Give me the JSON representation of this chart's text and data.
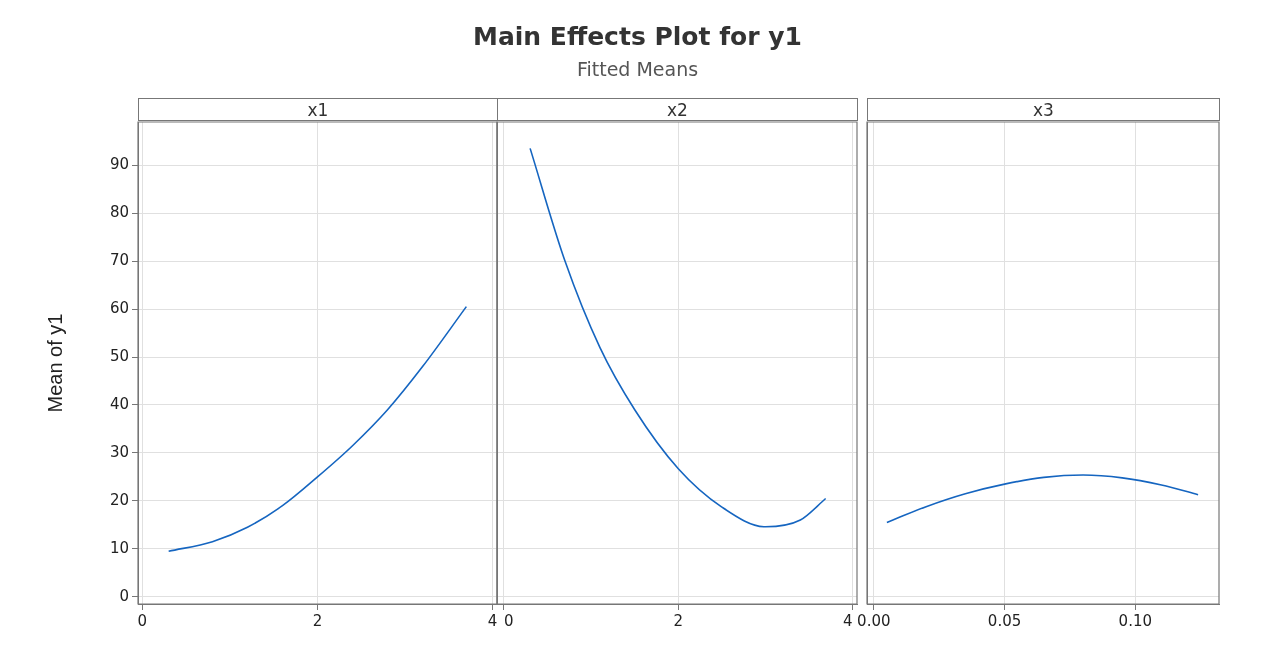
{
  "chart_data": [
    {
      "type": "line",
      "xlabel": "x1",
      "ylabel": "Mean of y1",
      "x": [
        0.3,
        0.8,
        1.2,
        1.6,
        2.0,
        2.4,
        2.8,
        3.2,
        3.7
      ],
      "series": [
        {
          "color": "#1565c0",
          "values": [
            9.5,
            11.5,
            14.5,
            19,
            25,
            31.5,
            39,
            48,
            60.5
          ]
        }
      ],
      "xlim": [
        -0.05,
        4.05
      ],
      "xticks": [
        0,
        2,
        4
      ],
      "ylim": [
        -1.5,
        99
      ],
      "yticks": [
        0,
        10,
        20,
        30,
        40,
        50,
        60,
        70,
        80,
        90
      ],
      "grid": true,
      "marker": "none",
      "line_style": "solid"
    },
    {
      "type": "line",
      "title": "Main Effects Plot for y1",
      "subtitle": "Fitted Means",
      "xlabel": "x2",
      "x": [
        0.3,
        0.7,
        1.1,
        1.5,
        2.0,
        2.5,
        3.0,
        3.4,
        3.69
      ],
      "series": [
        {
          "color": "#1565c0",
          "values": [
            93.5,
            70,
            52,
            39,
            26.7,
            18.7,
            14.6,
            16,
            20.5
          ]
        }
      ],
      "xlim": [
        -0.08,
        4.05
      ],
      "xticks": [
        0,
        2,
        4
      ],
      "ylim": [
        -1.5,
        99
      ],
      "yticks": [
        0,
        10,
        20,
        30,
        40,
        50,
        60,
        70,
        80,
        90
      ],
      "grid": true,
      "tick_labels": "x",
      "marker": "none",
      "line_style": "solid"
    },
    {
      "type": "line",
      "xlabel": "x3",
      "x": [
        0.005,
        0.02,
        0.035,
        0.05,
        0.065,
        0.08,
        0.095,
        0.11,
        0.124
      ],
      "series": [
        {
          "color": "#1565c0",
          "values": [
            15.5,
            18.8,
            21.5,
            23.5,
            24.9,
            25.4,
            24.8,
            23.3,
            21.3
          ]
        }
      ],
      "xlim": [
        -0.0026,
        0.132
      ],
      "xticks": [
        {
          "value": 0,
          "label": "0.00"
        },
        {
          "value": 0.05,
          "label": "0.05"
        },
        {
          "value": 0.1,
          "label": "0.10"
        }
      ],
      "ylim": [
        -1.5,
        99
      ],
      "yticks": [
        0,
        10,
        20,
        30,
        40,
        50,
        60,
        70,
        80,
        90
      ],
      "grid": true,
      "tick_labels": "x",
      "marker": "none",
      "line_style": "solid"
    }
  ]
}
